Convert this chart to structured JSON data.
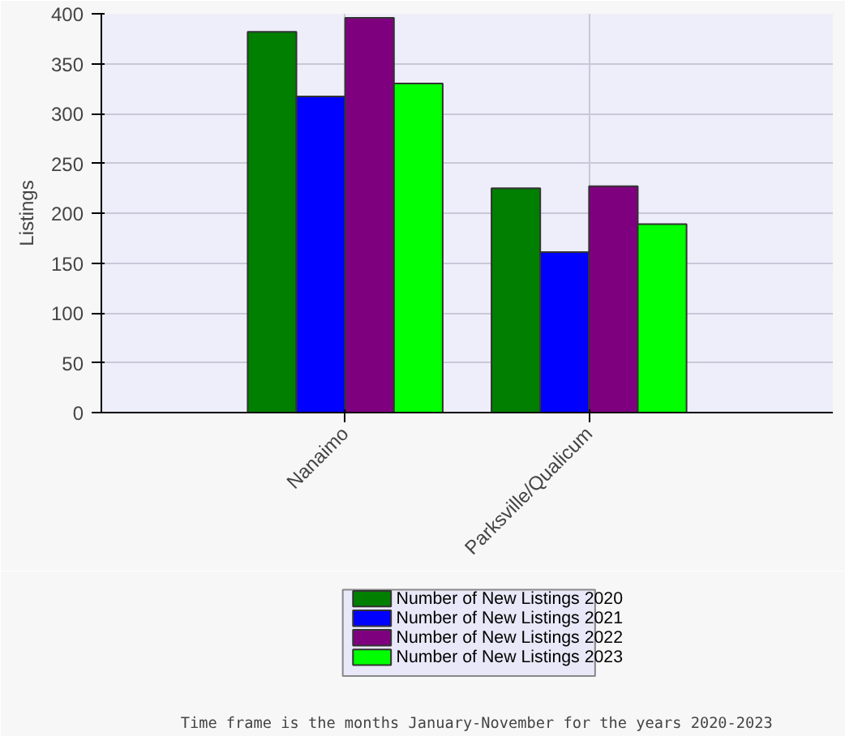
{
  "chart_data": {
    "type": "bar",
    "ylabel": "Listings",
    "categories": [
      "Nanaimo",
      "Parksville/Qualicum"
    ],
    "series": [
      {
        "name": "Number of New Listings 2020",
        "color": "#007f00",
        "values": [
          382,
          225
        ]
      },
      {
        "name": "Number of New Listings 2021",
        "color": "#0000ff",
        "values": [
          317,
          161
        ]
      },
      {
        "name": "Number of New Listings 2022",
        "color": "#7f007f",
        "values": [
          396,
          227
        ]
      },
      {
        "name": "Number of New Listings 2023",
        "color": "#00ff00",
        "values": [
          330,
          189
        ]
      }
    ],
    "ylim": [
      0,
      400
    ],
    "yticks": [
      0,
      50,
      100,
      150,
      200,
      250,
      300,
      350,
      400
    ],
    "grid": true,
    "legend": "bottom",
    "annotations": [
      "Time frame is the months January-November for the years 2020-2023"
    ]
  }
}
